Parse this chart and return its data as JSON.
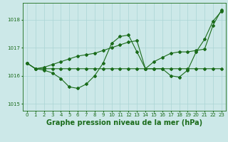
{
  "bg_color": "#cce8e8",
  "grid_color": "#aad4d4",
  "line_color": "#1a6b1a",
  "title": "Graphe pression niveau de la mer (hPa)",
  "xlim": [
    -0.5,
    23.5
  ],
  "ylim": [
    1014.75,
    1018.6
  ],
  "yticks": [
    1015,
    1016,
    1017,
    1018
  ],
  "xticks": [
    0,
    1,
    2,
    3,
    4,
    5,
    6,
    7,
    8,
    9,
    10,
    11,
    12,
    13,
    14,
    15,
    16,
    17,
    18,
    19,
    20,
    21,
    22,
    23
  ],
  "line1_x": [
    0,
    1,
    2,
    3,
    4,
    5,
    6,
    7,
    8,
    9,
    10,
    11,
    12,
    13,
    14,
    15,
    16,
    17,
    18,
    19,
    20,
    21,
    22,
    23
  ],
  "line1_y": [
    1016.45,
    1016.25,
    1016.25,
    1016.25,
    1016.25,
    1016.25,
    1016.25,
    1016.25,
    1016.25,
    1016.25,
    1016.25,
    1016.25,
    1016.25,
    1016.25,
    1016.25,
    1016.25,
    1016.25,
    1016.25,
    1016.25,
    1016.25,
    1016.25,
    1016.25,
    1016.25,
    1016.25
  ],
  "line2_x": [
    0,
    1,
    2,
    3,
    4,
    5,
    6,
    7,
    8,
    9,
    10,
    11,
    12,
    13,
    14,
    15,
    16,
    17,
    18,
    19,
    20,
    21,
    22,
    23
  ],
  "line2_y": [
    1016.45,
    1016.25,
    1016.2,
    1016.1,
    1015.9,
    1015.6,
    1015.55,
    1015.7,
    1016.0,
    1016.45,
    1017.15,
    1017.4,
    1017.45,
    1016.85,
    1016.25,
    1016.25,
    1016.25,
    1016.0,
    1015.95,
    1016.2,
    1016.85,
    1017.3,
    1017.95,
    1018.3
  ],
  "line3_x": [
    0,
    1,
    2,
    3,
    4,
    5,
    6,
    7,
    8,
    9,
    10,
    11,
    12,
    13,
    14,
    15,
    16,
    17,
    18,
    19,
    20,
    21,
    22,
    23
  ],
  "line3_y": [
    1016.45,
    1016.25,
    1016.3,
    1016.4,
    1016.5,
    1016.6,
    1016.7,
    1016.75,
    1016.8,
    1016.9,
    1017.0,
    1017.1,
    1017.2,
    1017.25,
    1016.25,
    1016.5,
    1016.65,
    1016.8,
    1016.85,
    1016.85,
    1016.9,
    1016.95,
    1017.8,
    1018.35
  ],
  "title_fontsize": 7,
  "tick_fontsize": 5,
  "marker": "D",
  "markersize": 2,
  "linewidth": 0.8
}
